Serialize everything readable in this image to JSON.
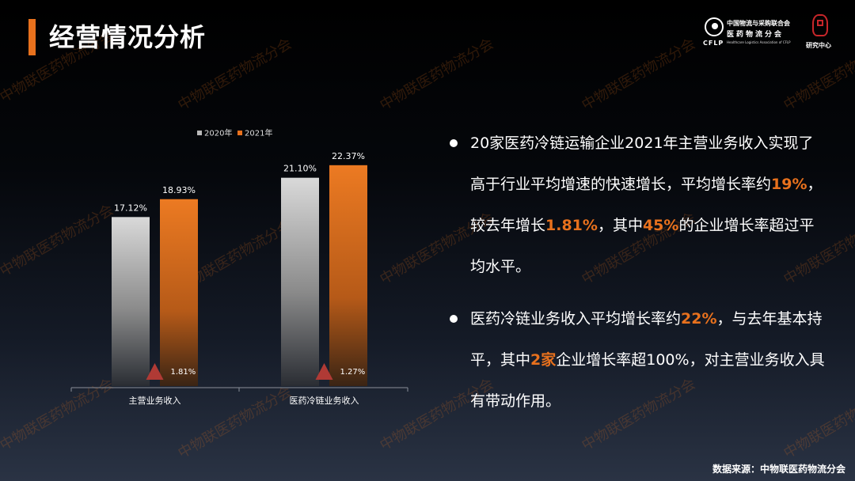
{
  "page": {
    "title": "经营情况分析",
    "source": "数据来源：中物联医药物流分会",
    "watermark": "中物联医药物流分会"
  },
  "logo": {
    "abbr": "CFLP",
    "org_line1": "中国物流与采购联合会",
    "org_line2": "医药物流分会",
    "org_en": "Healthcare Logistics Association of CFLP",
    "seal_text": "研究中心"
  },
  "chart_data": {
    "type": "bar",
    "categories": [
      "主营业务收入",
      "医药冷链业务收入"
    ],
    "series": [
      {
        "name": "2020年",
        "values": [
          17.12,
          21.1
        ],
        "labels": [
          "17.12%",
          "21.10%"
        ],
        "color": "#b9b9b9"
      },
      {
        "name": "2021年",
        "values": [
          18.93,
          22.37
        ],
        "labels": [
          "18.93%",
          "22.37%"
        ],
        "color": "#e8711d"
      }
    ],
    "increase": {
      "values": [
        1.81,
        1.27
      ],
      "labels": [
        "1.81%",
        "1.27%"
      ],
      "marker_color": "#b03a35"
    },
    "ylim": [
      0,
      25
    ],
    "grid": false,
    "legend_position": "top-center"
  },
  "bullets": [
    [
      {
        "t": "20家医药冷链运输企业2021年主营业务收入实现了高于行业平均增速的快速增长，平均增长率约"
      },
      {
        "t": "19%",
        "hl": true
      },
      {
        "t": "，较去年增长"
      },
      {
        "t": "1.81%",
        "hl": true
      },
      {
        "t": "，其中"
      },
      {
        "t": "45%",
        "hl": true
      },
      {
        "t": "的企业增长率超过平均水平。"
      }
    ],
    [
      {
        "t": "医药冷链业务收入平均增长率约"
      },
      {
        "t": "22%",
        "hl": true
      },
      {
        "t": "，与去年基本持平，其中"
      },
      {
        "t": "2家",
        "hl": true
      },
      {
        "t": "企业增长率超100%，对主营业务收入具有带动作用。"
      }
    ]
  ],
  "colors": {
    "accent": "#e8711d",
    "bar_2020": "#b9b9b9",
    "marker": "#b03a35"
  }
}
